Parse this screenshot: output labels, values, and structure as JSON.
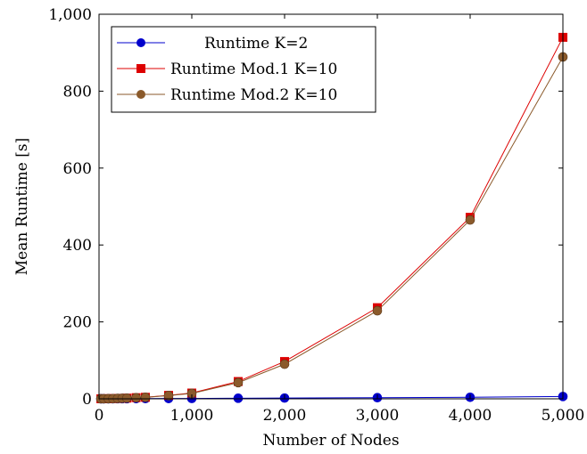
{
  "chart_data": {
    "type": "line",
    "xlabel": "Number of Nodes",
    "ylabel": "Mean Runtime [s]",
    "xlim": [
      0,
      5000
    ],
    "ylim": [
      0,
      1000
    ],
    "xticks": [
      0,
      1000,
      2000,
      3000,
      4000,
      5000
    ],
    "xtick_labels": [
      "0",
      "1,000",
      "2,000",
      "3,000",
      "4,000",
      "5,000"
    ],
    "yticks": [
      0,
      200,
      400,
      600,
      800,
      1000
    ],
    "ytick_labels": [
      "0",
      "200",
      "400",
      "600",
      "800",
      "1,000"
    ],
    "grid": false,
    "legend_position": "top-left",
    "series": [
      {
        "name": "Runtime K=2",
        "color": "#0000cc",
        "marker": "circle",
        "x": [
          20,
          50,
          100,
          150,
          200,
          250,
          300,
          400,
          500,
          750,
          1000,
          1500,
          2000,
          3000,
          4000,
          5000
        ],
        "y": [
          0.1,
          0.1,
          0.2,
          0.2,
          0.3,
          0.3,
          0.4,
          0.5,
          0.6,
          0.8,
          1.0,
          1.5,
          2.0,
          3.0,
          4.0,
          6.0
        ]
      },
      {
        "name": "Runtime Mod.1 K=10",
        "color": "#dd0000",
        "marker": "square",
        "x": [
          20,
          50,
          100,
          150,
          200,
          250,
          300,
          400,
          500,
          750,
          1000,
          1500,
          2000,
          3000,
          4000,
          5000
        ],
        "y": [
          0.1,
          0.2,
          0.4,
          0.6,
          0.9,
          1.3,
          1.8,
          3.0,
          4.0,
          9.0,
          15.0,
          45.0,
          97.0,
          237.0,
          472.0,
          940.0
        ]
      },
      {
        "name": "Runtime Mod.2 K=10",
        "color": "#8b5a2b",
        "marker": "circle",
        "x": [
          20,
          50,
          100,
          150,
          200,
          250,
          300,
          400,
          500,
          750,
          1000,
          1500,
          2000,
          3000,
          4000,
          5000
        ],
        "y": [
          0.1,
          0.2,
          0.4,
          0.6,
          0.9,
          1.2,
          1.7,
          2.8,
          3.8,
          8.5,
          14.0,
          42.0,
          90.0,
          229.0,
          465.0,
          889.0
        ]
      }
    ]
  }
}
